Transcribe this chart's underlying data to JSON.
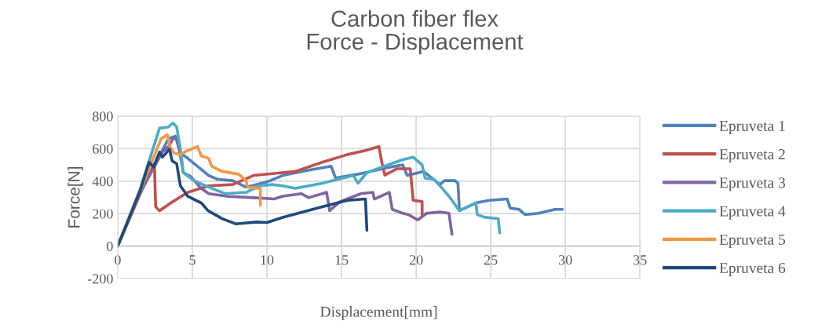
{
  "chart_data": {
    "type": "line",
    "title": "Carbon fiber flex\nForce - Displacement",
    "xlabel": "Displacement[mm]",
    "ylabel": "Force[N]",
    "xlim": [
      0,
      35
    ],
    "xticks": [
      0,
      5,
      10,
      15,
      20,
      25,
      30,
      35
    ],
    "ylim": [
      -200,
      800
    ],
    "yticks": [
      -200,
      0,
      200,
      400,
      600,
      800
    ],
    "grid": true,
    "legend": "right",
    "marker": "none",
    "line_style": "solid",
    "series": [
      {
        "name": "Epruveta 1",
        "color": "#4f81bd",
        "x": [
          0,
          1.5,
          3.4,
          3.86,
          4.2,
          4.7,
          6.1,
          6.7,
          7.7,
          8.6,
          10,
          11.05,
          12.8,
          14.3,
          14.6,
          16.1,
          18.1,
          19.1,
          19.4,
          20.5,
          21.6,
          21.9,
          22.6,
          22.8,
          22.9,
          24.0,
          24.9,
          26.1,
          26.3,
          26.9,
          27.3,
          28.2,
          29.3,
          29.8
        ],
        "values": [
          0,
          330,
          661,
          677,
          573,
          540,
          435,
          411,
          403,
          363,
          395,
          435,
          468,
          492,
          419,
          443,
          484,
          500,
          435,
          460,
          379,
          403,
          403,
          387,
          218,
          266,
          282,
          290,
          234,
          226,
          194,
          202,
          226,
          226
        ]
      },
      {
        "name": "Epruveta 2",
        "color": "#c0504d",
        "x": [
          0,
          1.5,
          2.46,
          2.54,
          2.8,
          3.7,
          4.7,
          6.1,
          7.7,
          9.1,
          11.05,
          11.9,
          13.7,
          15.4,
          16.6,
          17.5,
          17.7,
          17.9,
          18.7,
          19.6,
          19.8,
          20.4,
          20.4
        ],
        "values": [
          0,
          320,
          508,
          242,
          218,
          274,
          331,
          371,
          379,
          435,
          452,
          460,
          516,
          564,
          589,
          613,
          516,
          437,
          476,
          476,
          282,
          274,
          185
        ]
      },
      {
        "name": "Epruveta 3",
        "color": "#8064a2",
        "x": [
          0,
          1.5,
          3.0,
          3.4,
          3.77,
          4.0,
          4.4,
          4.9,
          5.6,
          6.1,
          7.4,
          9.1,
          10.5,
          11.05,
          12.3,
          12.8,
          14.0,
          14.2,
          14.9,
          16.3,
          17.1,
          17.2,
          18.2,
          18.4,
          19.1,
          19.5,
          20.1,
          20.7,
          21.6,
          22.2,
          22.4
        ],
        "values": [
          0,
          330,
          580,
          613,
          669,
          653,
          452,
          427,
          355,
          323,
          306,
          298,
          290,
          307,
          323,
          298,
          331,
          218,
          274,
          323,
          331,
          290,
          331,
          226,
          202,
          193,
          161,
          202,
          210,
          202,
          73
        ]
      },
      {
        "name": "Epruveta 4",
        "color": "#4bacc6",
        "x": [
          0,
          1.5,
          2.8,
          3.4,
          3.7,
          3.95,
          4.2,
          4.4,
          5.1,
          6.1,
          7.2,
          8.6,
          9.5,
          10.35,
          11.05,
          11.9,
          13.7,
          15.8,
          16.1,
          16.7,
          18.1,
          19.1,
          19.8,
          20.4,
          20.6,
          21.2,
          21.75,
          22.2,
          22.9,
          24.0,
          24.1,
          24.6,
          25.5,
          25.6
        ],
        "values": [
          0,
          350,
          726,
          734,
          758,
          734,
          597,
          452,
          403,
          363,
          323,
          331,
          371,
          379,
          371,
          355,
          387,
          435,
          387,
          452,
          500,
          532,
          548,
          500,
          419,
          411,
          355,
          307,
          218,
          266,
          194,
          177,
          169,
          81
        ]
      },
      {
        "name": "Epruveta 5",
        "color": "#f79646",
        "x": [
          0,
          1.5,
          2.9,
          3.33,
          3.5,
          3.77,
          4.2,
          4.7,
          5.35,
          5.6,
          6.1,
          6.3,
          7.0,
          8.1,
          8.6,
          8.7,
          9.56,
          9.56
        ],
        "values": [
          0,
          340,
          661,
          685,
          613,
          573,
          564,
          589,
          613,
          556,
          540,
          492,
          460,
          443,
          403,
          363,
          355,
          250
        ]
      },
      {
        "name": "Epruveta 6",
        "color": "#1f497d",
        "x": [
          0,
          1.5,
          2.1,
          2.4,
          2.8,
          3.0,
          3.47,
          3.65,
          3.95,
          4.2,
          4.7,
          5.6,
          6.05,
          7.0,
          7.9,
          9.3,
          10,
          11.05,
          13.7,
          15.4,
          16.6,
          16.7
        ],
        "values": [
          0,
          340,
          516,
          487,
          580,
          548,
          597,
          524,
          508,
          371,
          306,
          266,
          218,
          169,
          137,
          148,
          145,
          177,
          242,
          282,
          290,
          97
        ]
      }
    ]
  }
}
